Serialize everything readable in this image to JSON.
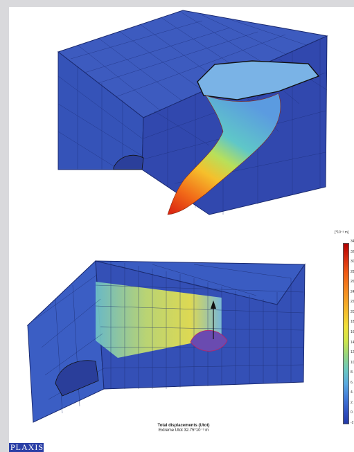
{
  "legend": {
    "unit": "[*10⁻³ m]",
    "ticks": [
      "34",
      "32",
      "30",
      "28",
      "26",
      "24",
      "22",
      "20",
      "18",
      "16",
      "14",
      "12",
      "10",
      "8.",
      "6.",
      "4.",
      "2.",
      "0.",
      "-2"
    ]
  },
  "caption": {
    "title": "Total displacements (Utot)",
    "subtitle": "Extreme Utot 32.75*10⁻³ m"
  },
  "logo": {
    "text": "PLAXIS"
  },
  "colors": {
    "background": "#d9d9dc",
    "mesh_blue": "#3450b0",
    "high_displacement": "#d62a10",
    "logo_blue": "#2a3fa6"
  }
}
